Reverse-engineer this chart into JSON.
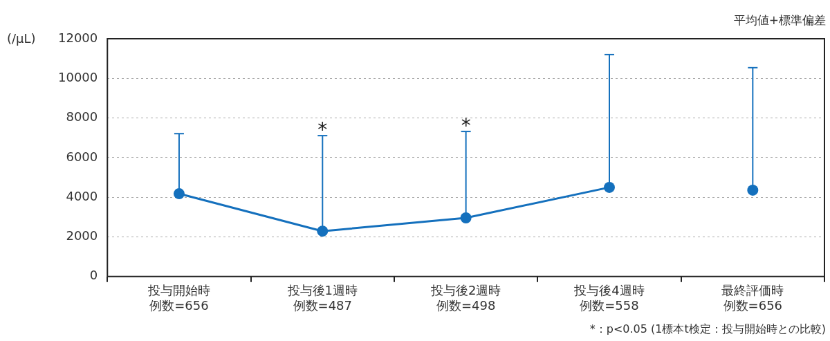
{
  "chart_data": {
    "type": "line",
    "ylabel": "(/μL)",
    "subtitle": "平均値+標準偏差",
    "categories": [
      "投与開始時例数=656",
      "投与後1週時例数=487",
      "投与後2週時例数=498",
      "投与後4週時例数=558",
      "最終評価時例数=656"
    ],
    "series": [
      {
        "type": "line",
        "color": "#1470bd",
        "values": [
          4180,
          2290,
          2960,
          4500,
          null
        ],
        "errors": [
          [
            4180,
            7210
          ],
          [
            2290,
            7110
          ],
          [
            2960,
            7320
          ],
          [
            4500,
            11200
          ],
          null
        ]
      },
      {
        "type": "scatter",
        "color": "#1470bd",
        "values": [
          null,
          null,
          null,
          null,
          4360
        ],
        "errors": [
          null,
          null,
          null,
          null,
          [
            4360,
            10540
          ]
        ]
      }
    ],
    "ylim": [
      0,
      12000
    ],
    "yticks": [
      0,
      2000,
      4000,
      6000,
      8000,
      10000,
      12000
    ],
    "grid": "y",
    "marker": "circle",
    "line_style": "solid",
    "legend": false,
    "annotations": [
      {
        "text": "*",
        "x": "投与後1週時例数=487",
        "y": 7110
      },
      {
        "text": "*",
        "x": "投与後2週時例数=498",
        "y": 7320
      },
      "*：p<0.05 (1標本t検定：投与開始時との比較)"
    ]
  }
}
